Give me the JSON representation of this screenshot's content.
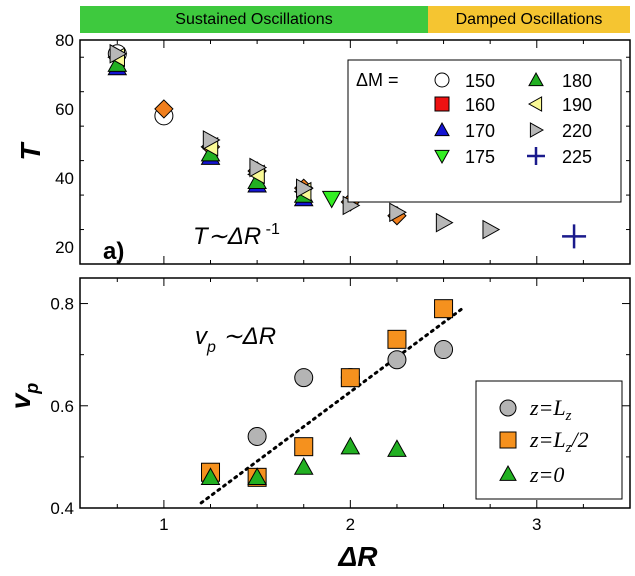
{
  "phase_bar": {
    "sustained_label": "Sustained Oscillations",
    "damped_label": "Damped Oscillations",
    "sustained_color": "#3ec93e",
    "damped_color": "#f5c531",
    "boundary_dR": 2.38
  },
  "chart_data": [
    {
      "type": "scatter",
      "panel_label": "a)",
      "ylabel": "T",
      "annotation": {
        "main": "T∼ΔR",
        "sup": " -1"
      },
      "xlim": [
        0.55,
        3.5
      ],
      "ylim": [
        15,
        80
      ],
      "yticks": [
        20,
        40,
        60,
        80
      ],
      "legend_title": "ΔM =",
      "legend_position": "top-right",
      "series": [
        {
          "name": "150",
          "marker": "circle",
          "color": "#ffffff",
          "points": [
            [
              1.0,
              58
            ],
            [
              0.75,
              76
            ]
          ]
        },
        {
          "name": "160",
          "marker": "diamond",
          "color": "#f07f1e",
          "points": [
            [
              1.0,
              60
            ],
            [
              1.25,
              49
            ],
            [
              1.5,
              42
            ],
            [
              1.75,
              37
            ],
            [
              2.0,
              33
            ],
            [
              2.25,
              29
            ]
          ]
        },
        {
          "name": "170",
          "marker": "triangle-up",
          "color": "#1414d2",
          "points": [
            [
              0.75,
              72
            ],
            [
              1.25,
              46
            ],
            [
              1.5,
              38
            ],
            [
              1.75,
              34
            ]
          ]
        },
        {
          "name": "175",
          "marker": "triangle-down",
          "color": "#33ee22",
          "points": [
            [
              1.9,
              34
            ]
          ]
        },
        {
          "name": "180",
          "marker": "triangle-up",
          "color": "#22b022",
          "points": [
            [
              0.75,
              73
            ],
            [
              1.25,
              47
            ],
            [
              1.5,
              39
            ],
            [
              1.75,
              35
            ]
          ]
        },
        {
          "name": "190",
          "marker": "triangle-left",
          "color": "#fafa96",
          "points": [
            [
              0.75,
              75
            ],
            [
              1.25,
              49
            ],
            [
              1.5,
              41
            ],
            [
              1.75,
              36
            ]
          ]
        },
        {
          "name": "220",
          "marker": "triangle-right",
          "color": "#b8b8b8",
          "points": [
            [
              0.75,
              76
            ],
            [
              1.25,
              51
            ],
            [
              1.5,
              43
            ],
            [
              1.75,
              37
            ],
            [
              2.0,
              32
            ],
            [
              2.25,
              30
            ],
            [
              2.5,
              27
            ],
            [
              2.75,
              25
            ]
          ]
        },
        {
          "name": "225",
          "marker": "plus",
          "color": "#1a1a8c",
          "points": [
            [
              3.2,
              23
            ]
          ]
        }
      ]
    },
    {
      "type": "scatter",
      "ylabel": "v",
      "ylabel_sub": "p",
      "annotation": {
        "main": "v",
        "sub": "p",
        "rest": " ∼ΔR"
      },
      "xlabel": "ΔR",
      "xlim": [
        0.55,
        3.5
      ],
      "ylim": [
        0.4,
        0.85
      ],
      "yticks": [
        0.4,
        0.6,
        0.8
      ],
      "xticks": [
        1,
        2,
        3
      ],
      "legend_position": "bottom-right",
      "series": [
        {
          "name": "z=L",
          "name_sub": "z",
          "name_suffix": "",
          "marker": "circle",
          "color": "#b4b4b4",
          "points": [
            [
              1.5,
              0.54
            ],
            [
              1.75,
              0.655
            ],
            [
              2.0,
              0.655
            ],
            [
              2.25,
              0.69
            ],
            [
              2.5,
              0.71
            ]
          ]
        },
        {
          "name": "z=L",
          "name_sub": "z",
          "name_suffix": "/2",
          "marker": "square",
          "color": "#f5911e",
          "points": [
            [
              1.25,
              0.47
            ],
            [
              1.5,
              0.46
            ],
            [
              1.75,
              0.52
            ],
            [
              2.0,
              0.655
            ],
            [
              2.25,
              0.73
            ],
            [
              2.5,
              0.79
            ]
          ]
        },
        {
          "name": "z=0",
          "name_sub": "",
          "name_suffix": "",
          "marker": "triangle-up",
          "color": "#22b022",
          "points": [
            [
              1.25,
              0.46
            ],
            [
              1.5,
              0.46
            ],
            [
              1.75,
              0.48
            ],
            [
              2.0,
              0.52
            ],
            [
              2.25,
              0.515
            ]
          ]
        }
      ],
      "fit_line": {
        "style": "dotted",
        "from": [
          1.2,
          0.41
        ],
        "to": [
          2.6,
          0.79
        ]
      }
    }
  ]
}
